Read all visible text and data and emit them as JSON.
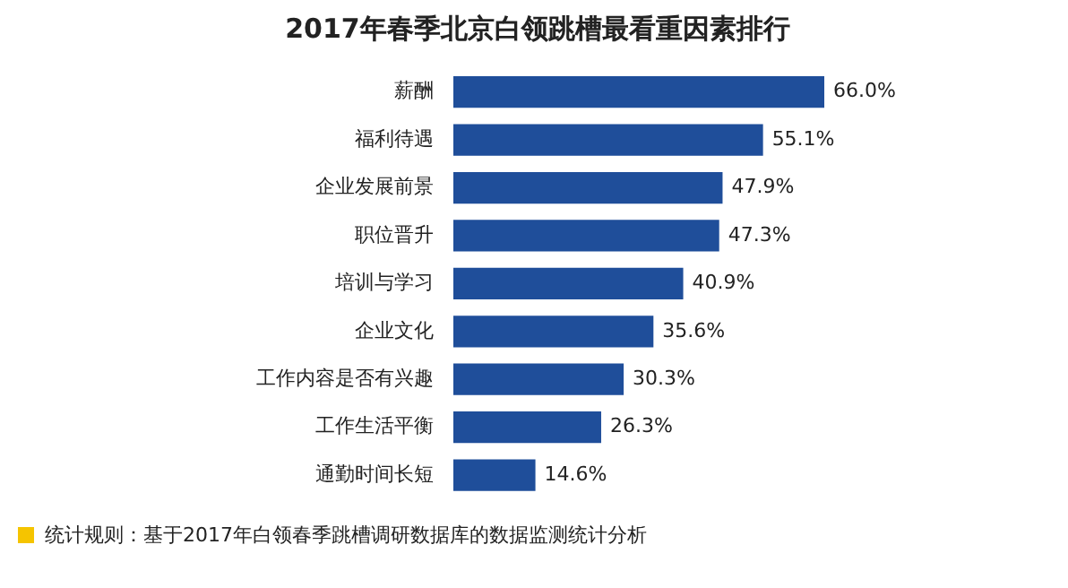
{
  "chart_data": {
    "type": "bar",
    "orientation": "horizontal",
    "title": "2017年春季北京白领跳槽最看重因素排行",
    "categories": [
      "薪酬",
      "福利待遇",
      "企业发展前景",
      "职位晋升",
      "培训与学习",
      "企业文化",
      "工作内容是否有兴趣",
      "工作生活平衡",
      "通勤时间长短"
    ],
    "values": [
      66.0,
      55.1,
      47.9,
      47.3,
      40.9,
      35.6,
      30.3,
      26.3,
      14.6
    ],
    "value_labels": [
      "66.0%",
      "55.1%",
      "47.9%",
      "47.3%",
      "40.9%",
      "35.6%",
      "30.3%",
      "26.3%",
      "14.6%"
    ],
    "color": "#1f4e9a",
    "annotations": [
      "统计规则：基于2017年白领春季跳槽调研数据库的数据监测统计分析"
    ]
  }
}
